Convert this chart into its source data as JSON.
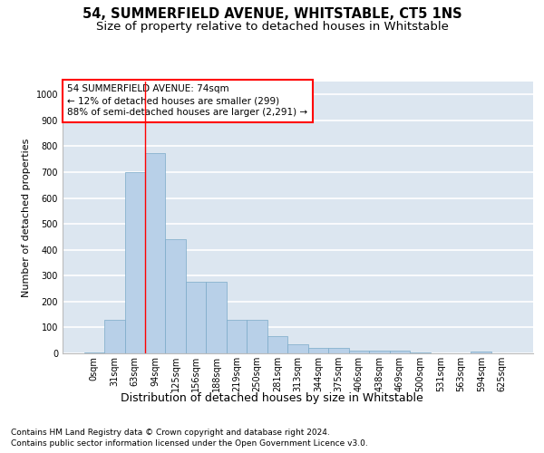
{
  "title": "54, SUMMERFIELD AVENUE, WHITSTABLE, CT5 1NS",
  "subtitle": "Size of property relative to detached houses in Whitstable",
  "xlabel": "Distribution of detached houses by size in Whitstable",
  "ylabel": "Number of detached properties",
  "bar_color": "#b8d0e8",
  "bar_edge_color": "#7aaac8",
  "background_color": "#dce6f0",
  "grid_color": "#ffffff",
  "categories": [
    "0sqm",
    "31sqm",
    "63sqm",
    "94sqm",
    "125sqm",
    "156sqm",
    "188sqm",
    "219sqm",
    "250sqm",
    "281sqm",
    "313sqm",
    "344sqm",
    "375sqm",
    "406sqm",
    "438sqm",
    "469sqm",
    "500sqm",
    "531sqm",
    "563sqm",
    "594sqm",
    "625sqm"
  ],
  "values": [
    5,
    128,
    700,
    775,
    440,
    275,
    275,
    130,
    130,
    68,
    35,
    20,
    20,
    10,
    10,
    10,
    5,
    0,
    0,
    8,
    0
  ],
  "ylim": [
    0,
    1050
  ],
  "yticks": [
    0,
    100,
    200,
    300,
    400,
    500,
    600,
    700,
    800,
    900,
    1000
  ],
  "property_label": "54 SUMMERFIELD AVENUE: 74sqm",
  "annotation_line1": "← 12% of detached houses are smaller (299)",
  "annotation_line2": "88% of semi-detached houses are larger (2,291) →",
  "vline_bar_index": 2,
  "footer_line1": "Contains HM Land Registry data © Crown copyright and database right 2024.",
  "footer_line2": "Contains public sector information licensed under the Open Government Licence v3.0.",
  "title_fontsize": 10.5,
  "subtitle_fontsize": 9.5,
  "xlabel_fontsize": 9,
  "ylabel_fontsize": 8,
  "tick_fontsize": 7,
  "annotation_fontsize": 7.5,
  "footer_fontsize": 6.5
}
